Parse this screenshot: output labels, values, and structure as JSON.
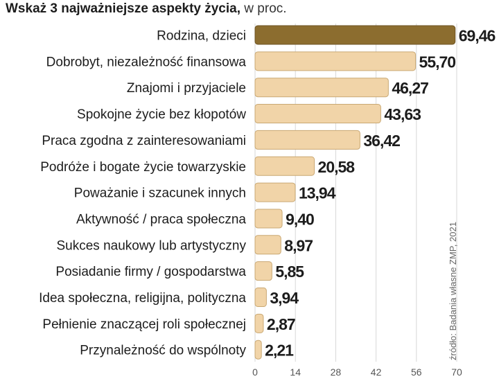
{
  "title": {
    "bold": "Wskaż 3 najważniejsze aspekty życia,",
    "unit": " w proc."
  },
  "source": "źródło: Badania własne ZMP, 2021",
  "colors": {
    "highlight": "#8c6d2f",
    "bar": "#f1d4a8",
    "bar_edge": "#c9a873",
    "grid": "#d7d7d7",
    "label": "#1c1c1c",
    "tick": "#555555"
  },
  "chart_data": {
    "type": "bar",
    "orientation": "horizontal",
    "title": "Wskaż 3 najważniejsze aspekty życia, w proc.",
    "categories": [
      "Rodzina, dzieci",
      "Dobrobyt, niezależność finansowa",
      "Znajomi i przyjaciele",
      "Spokojne życie bez kłopotów",
      "Praca zgodna z zainteresowaniami",
      "Podróże i bogate życie towarzyskie",
      "Poważanie i szacunek innych",
      "Aktywność / praca społeczna",
      "Sukces naukowy lub artystyczny",
      "Posiadanie firmy / gospodarstwa",
      "Idea społeczna, religijna, polityczna",
      "Pełnienie znaczącej roli społecznej",
      "Przynależność do wspólnoty"
    ],
    "values": [
      69.46,
      55.7,
      46.27,
      43.63,
      36.42,
      20.58,
      13.94,
      9.4,
      8.97,
      5.85,
      3.94,
      2.87,
      2.21
    ],
    "value_labels": [
      "69,46",
      "55,70",
      "46,27",
      "43,63",
      "36,42",
      "20,58",
      "13,94",
      "9,40",
      "8,97",
      "5,85",
      "3,94",
      "2,87",
      "2,21"
    ],
    "highlighted_index": 0,
    "xlim": [
      0,
      70
    ],
    "xticks": [
      0,
      14,
      28,
      42,
      56,
      70
    ],
    "xlabel": "",
    "ylabel": "",
    "grid": true,
    "legend": "none"
  }
}
